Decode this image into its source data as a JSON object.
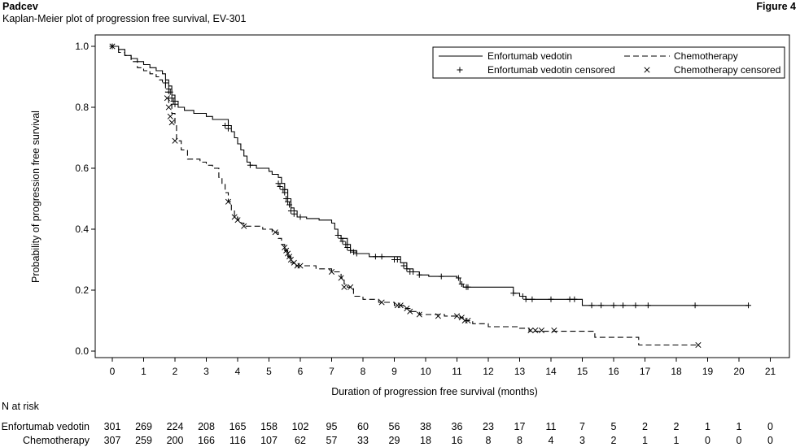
{
  "header": {
    "product": "Padcev",
    "subtitle": "Kaplan-Meier plot of progression free survival, EV-301",
    "figure": "Figure 4"
  },
  "chart_data": {
    "type": "line",
    "xlabel": "Duration of progression free survival (months)",
    "ylabel": "Probability of progression free survival",
    "xlim": [
      -1,
      21.3
    ],
    "ylim": [
      -0.02,
      1.04
    ],
    "xticks": [
      0,
      1,
      2,
      3,
      4,
      5,
      6,
      7,
      8,
      9,
      10,
      11,
      12,
      13,
      14,
      15,
      16,
      17,
      18,
      19,
      20,
      21
    ],
    "yticks": [
      0.0,
      0.2,
      0.4,
      0.6,
      0.8,
      1.0
    ],
    "legend": {
      "position": "top-right",
      "entries": [
        "Enfortumab vedotin",
        "Chemotherapy",
        "Enfortumab vedotin censored",
        "Chemotherapy censored"
      ]
    },
    "series": [
      {
        "name": "Enfortumab vedotin",
        "style": "solid",
        "steps": [
          [
            0,
            1.0
          ],
          [
            0.2,
            0.99
          ],
          [
            0.4,
            0.97
          ],
          [
            0.6,
            0.96
          ],
          [
            0.8,
            0.95
          ],
          [
            1.0,
            0.94
          ],
          [
            1.2,
            0.93
          ],
          [
            1.4,
            0.92
          ],
          [
            1.6,
            0.91
          ],
          [
            1.7,
            0.89
          ],
          [
            1.8,
            0.87
          ],
          [
            1.9,
            0.84
          ],
          [
            2.0,
            0.82
          ],
          [
            2.1,
            0.8
          ],
          [
            2.3,
            0.79
          ],
          [
            2.6,
            0.78
          ],
          [
            3.0,
            0.77
          ],
          [
            3.2,
            0.76
          ],
          [
            3.7,
            0.74
          ],
          [
            3.8,
            0.72
          ],
          [
            3.9,
            0.7
          ],
          [
            4.0,
            0.68
          ],
          [
            4.1,
            0.66
          ],
          [
            4.2,
            0.64
          ],
          [
            4.3,
            0.62
          ],
          [
            4.4,
            0.61
          ],
          [
            4.6,
            0.6
          ],
          [
            5.0,
            0.59
          ],
          [
            5.1,
            0.58
          ],
          [
            5.3,
            0.57
          ],
          [
            5.4,
            0.55
          ],
          [
            5.5,
            0.53
          ],
          [
            5.6,
            0.5
          ],
          [
            5.7,
            0.47
          ],
          [
            5.8,
            0.46
          ],
          [
            5.9,
            0.44
          ],
          [
            6.2,
            0.435
          ],
          [
            6.6,
            0.43
          ],
          [
            7.0,
            0.42
          ],
          [
            7.1,
            0.4
          ],
          [
            7.2,
            0.38
          ],
          [
            7.3,
            0.37
          ],
          [
            7.5,
            0.35
          ],
          [
            7.6,
            0.33
          ],
          [
            7.8,
            0.32
          ],
          [
            8.2,
            0.31
          ],
          [
            8.8,
            0.31
          ],
          [
            9.2,
            0.29
          ],
          [
            9.4,
            0.27
          ],
          [
            9.6,
            0.26
          ],
          [
            9.8,
            0.25
          ],
          [
            10.1,
            0.245
          ],
          [
            11.0,
            0.24
          ],
          [
            11.1,
            0.22
          ],
          [
            11.2,
            0.21
          ],
          [
            12.7,
            0.21
          ],
          [
            12.8,
            0.19
          ],
          [
            13.0,
            0.18
          ],
          [
            13.2,
            0.17
          ],
          [
            14.9,
            0.17
          ],
          [
            15.0,
            0.15
          ],
          [
            20.3,
            0.15
          ]
        ],
        "censored": [
          [
            0,
            1.0
          ],
          [
            1.7,
            0.88
          ],
          [
            1.8,
            0.86
          ],
          [
            1.85,
            0.85
          ],
          [
            1.9,
            0.83
          ],
          [
            1.95,
            0.82
          ],
          [
            2.0,
            0.81
          ],
          [
            3.6,
            0.74
          ],
          [
            3.7,
            0.73
          ],
          [
            4.4,
            0.61
          ],
          [
            5.3,
            0.55
          ],
          [
            5.35,
            0.54
          ],
          [
            5.45,
            0.53
          ],
          [
            5.5,
            0.52
          ],
          [
            5.55,
            0.5
          ],
          [
            5.6,
            0.49
          ],
          [
            5.65,
            0.48
          ],
          [
            5.7,
            0.46
          ],
          [
            5.8,
            0.45
          ],
          [
            6.0,
            0.44
          ],
          [
            7.2,
            0.38
          ],
          [
            7.3,
            0.37
          ],
          [
            7.35,
            0.36
          ],
          [
            7.45,
            0.35
          ],
          [
            7.5,
            0.34
          ],
          [
            7.6,
            0.33
          ],
          [
            7.7,
            0.325
          ],
          [
            7.8,
            0.32
          ],
          [
            8.4,
            0.31
          ],
          [
            8.6,
            0.31
          ],
          [
            9.0,
            0.3
          ],
          [
            9.1,
            0.3
          ],
          [
            9.3,
            0.28
          ],
          [
            9.4,
            0.27
          ],
          [
            9.5,
            0.26
          ],
          [
            9.6,
            0.26
          ],
          [
            9.8,
            0.25
          ],
          [
            10.5,
            0.245
          ],
          [
            11.05,
            0.24
          ],
          [
            11.15,
            0.22
          ],
          [
            11.3,
            0.21
          ],
          [
            11.35,
            0.21
          ],
          [
            12.8,
            0.19
          ],
          [
            13.1,
            0.18
          ],
          [
            13.2,
            0.17
          ],
          [
            13.4,
            0.17
          ],
          [
            14.0,
            0.17
          ],
          [
            14.6,
            0.17
          ],
          [
            14.75,
            0.17
          ],
          [
            15.3,
            0.15
          ],
          [
            15.6,
            0.15
          ],
          [
            16.0,
            0.15
          ],
          [
            16.3,
            0.15
          ],
          [
            16.7,
            0.15
          ],
          [
            17.1,
            0.15
          ],
          [
            18.6,
            0.15
          ],
          [
            20.3,
            0.15
          ]
        ]
      },
      {
        "name": "Chemotherapy",
        "style": "dashed",
        "steps": [
          [
            0,
            1.0
          ],
          [
            0.2,
            0.98
          ],
          [
            0.4,
            0.97
          ],
          [
            0.6,
            0.95
          ],
          [
            0.8,
            0.93
          ],
          [
            1.0,
            0.92
          ],
          [
            1.2,
            0.91
          ],
          [
            1.4,
            0.9
          ],
          [
            1.5,
            0.89
          ],
          [
            1.6,
            0.88
          ],
          [
            1.7,
            0.85
          ],
          [
            1.8,
            0.81
          ],
          [
            1.9,
            0.78
          ],
          [
            2.0,
            0.74
          ],
          [
            2.05,
            0.69
          ],
          [
            2.2,
            0.66
          ],
          [
            2.4,
            0.63
          ],
          [
            2.8,
            0.62
          ],
          [
            3.0,
            0.61
          ],
          [
            3.2,
            0.6
          ],
          [
            3.4,
            0.57
          ],
          [
            3.5,
            0.55
          ],
          [
            3.6,
            0.52
          ],
          [
            3.7,
            0.49
          ],
          [
            3.8,
            0.46
          ],
          [
            3.9,
            0.44
          ],
          [
            4.0,
            0.43
          ],
          [
            4.1,
            0.42
          ],
          [
            4.2,
            0.41
          ],
          [
            4.8,
            0.4
          ],
          [
            5.1,
            0.39
          ],
          [
            5.3,
            0.37
          ],
          [
            5.4,
            0.35
          ],
          [
            5.5,
            0.33
          ],
          [
            5.6,
            0.31
          ],
          [
            5.7,
            0.29
          ],
          [
            5.8,
            0.28
          ],
          [
            6.5,
            0.27
          ],
          [
            7.0,
            0.26
          ],
          [
            7.3,
            0.24
          ],
          [
            7.4,
            0.22
          ],
          [
            7.5,
            0.21
          ],
          [
            7.7,
            0.18
          ],
          [
            8.0,
            0.17
          ],
          [
            8.5,
            0.16
          ],
          [
            9.0,
            0.15
          ],
          [
            9.3,
            0.14
          ],
          [
            9.5,
            0.13
          ],
          [
            9.8,
            0.12
          ],
          [
            10.6,
            0.115
          ],
          [
            11.1,
            0.11
          ],
          [
            11.2,
            0.1
          ],
          [
            11.5,
            0.09
          ],
          [
            12.0,
            0.08
          ],
          [
            13.0,
            0.075
          ],
          [
            13.3,
            0.065
          ],
          [
            15.4,
            0.045
          ],
          [
            16.8,
            0.02
          ],
          [
            18.7,
            0.02
          ]
        ],
        "censored": [
          [
            0,
            1.0
          ],
          [
            1.75,
            0.83
          ],
          [
            1.8,
            0.8
          ],
          [
            1.85,
            0.77
          ],
          [
            1.9,
            0.75
          ],
          [
            2.0,
            0.69
          ],
          [
            3.7,
            0.49
          ],
          [
            3.9,
            0.44
          ],
          [
            4.0,
            0.43
          ],
          [
            4.2,
            0.41
          ],
          [
            5.2,
            0.39
          ],
          [
            5.5,
            0.34
          ],
          [
            5.55,
            0.33
          ],
          [
            5.6,
            0.32
          ],
          [
            5.65,
            0.31
          ],
          [
            5.7,
            0.3
          ],
          [
            5.8,
            0.29
          ],
          [
            5.9,
            0.28
          ],
          [
            6.0,
            0.28
          ],
          [
            7.0,
            0.26
          ],
          [
            7.3,
            0.24
          ],
          [
            7.4,
            0.21
          ],
          [
            7.6,
            0.21
          ],
          [
            8.6,
            0.16
          ],
          [
            9.1,
            0.15
          ],
          [
            9.2,
            0.15
          ],
          [
            9.4,
            0.14
          ],
          [
            9.5,
            0.13
          ],
          [
            9.8,
            0.12
          ],
          [
            10.4,
            0.115
          ],
          [
            11.0,
            0.115
          ],
          [
            11.15,
            0.11
          ],
          [
            11.25,
            0.1
          ],
          [
            11.35,
            0.1
          ],
          [
            13.35,
            0.068
          ],
          [
            13.5,
            0.068
          ],
          [
            13.7,
            0.068
          ],
          [
            14.1,
            0.068
          ],
          [
            18.7,
            0.02
          ]
        ]
      }
    ]
  },
  "risk_table": {
    "label": "N at risk",
    "times": [
      0,
      1,
      2,
      3,
      4,
      5,
      6,
      7,
      8,
      9,
      10,
      11,
      12,
      13,
      14,
      15,
      16,
      17,
      18,
      19,
      20,
      21
    ],
    "rows": [
      {
        "name": "Enfortumab vedotin",
        "values": [
          "301",
          "269",
          "224",
          "208",
          "165",
          "158",
          "102",
          "95",
          "60",
          "56",
          "38",
          "36",
          "23",
          "17",
          "11",
          "7",
          "5",
          "2",
          "2",
          "1",
          "1",
          "0"
        ]
      },
      {
        "name": "Chemotherapy",
        "values": [
          "307",
          "259",
          "200",
          "166",
          "116",
          "107",
          "62",
          "57",
          "33",
          "29",
          "18",
          "16",
          "8",
          "8",
          "4",
          "3",
          "2",
          "1",
          "1",
          "0",
          "0",
          "0"
        ]
      }
    ]
  }
}
